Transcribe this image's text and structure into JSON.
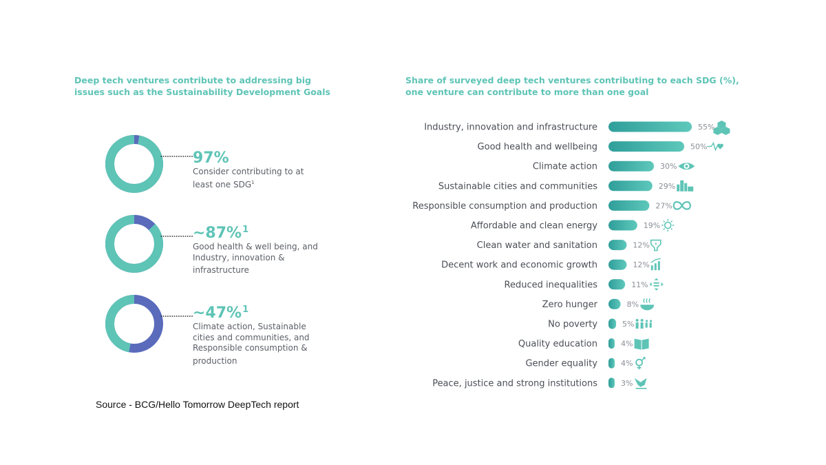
{
  "left_panel": {
    "title": "Deep tech ventures contribute to addressing big issues such as the Sustainability Development Goals",
    "stats": [
      {
        "pct_label": "97%",
        "footnote": "",
        "description": "Consider contributing to at least one SDG",
        "desc_footnote": "1",
        "fraction": 0.97
      },
      {
        "pct_label": "~87%",
        "footnote": "1",
        "description": "Good health & well being, and Industry, innovation & infrastructure",
        "desc_footnote": "",
        "fraction": 0.87
      },
      {
        "pct_label": "~47%",
        "footnote": "1",
        "description": "Climate action, Sustainable cities and communities, and Responsible consumption & production",
        "desc_footnote": "",
        "fraction": 0.47
      }
    ],
    "colors": {
      "main": "#5ec4b6",
      "remainder": "#5a6bbb"
    }
  },
  "source": "Source - BCG/Hello Tomorrow  DeepTech report",
  "chart_data": {
    "type": "bar",
    "orientation": "horizontal",
    "title": "Share of surveyed deep tech ventures contributing to each SDG (%), one venture can contribute to more than one goal",
    "categories": [
      "Industry, innovation and infrastructure",
      "Good health and wellbeing",
      "Climate action",
      "Sustainable cities and communities",
      "Responsible consumption and production",
      "Affordable and clean energy",
      "Clean water and sanitation",
      "Decent work and economic growth",
      "Reduced inequalities",
      "Zero hunger",
      "No poverty",
      "Quality education",
      "Gender equality",
      "Peace, justice and strong institutions"
    ],
    "values": [
      55,
      50,
      30,
      29,
      27,
      19,
      12,
      12,
      11,
      8,
      5,
      4,
      4,
      3
    ],
    "value_labels": [
      "55%",
      "50%",
      "30%",
      "29%",
      "27%",
      "19%",
      "12%",
      "12%",
      "11%",
      "8%",
      "5%",
      "4%",
      "4%",
      "3%"
    ],
    "icons": [
      "blocks-icon",
      "heartbeat-icon",
      "eye-icon",
      "city-icon",
      "infinity-icon",
      "sun-icon",
      "water-icon",
      "growth-chart-icon",
      "equality-arrows-icon",
      "food-bowl-icon",
      "family-icon",
      "book-icon",
      "gender-icon",
      "dove-icon"
    ],
    "colors": {
      "bar_start": "#2f9e9a",
      "bar_end": "#5ec8bb",
      "icon": "#5ec4b6"
    }
  }
}
